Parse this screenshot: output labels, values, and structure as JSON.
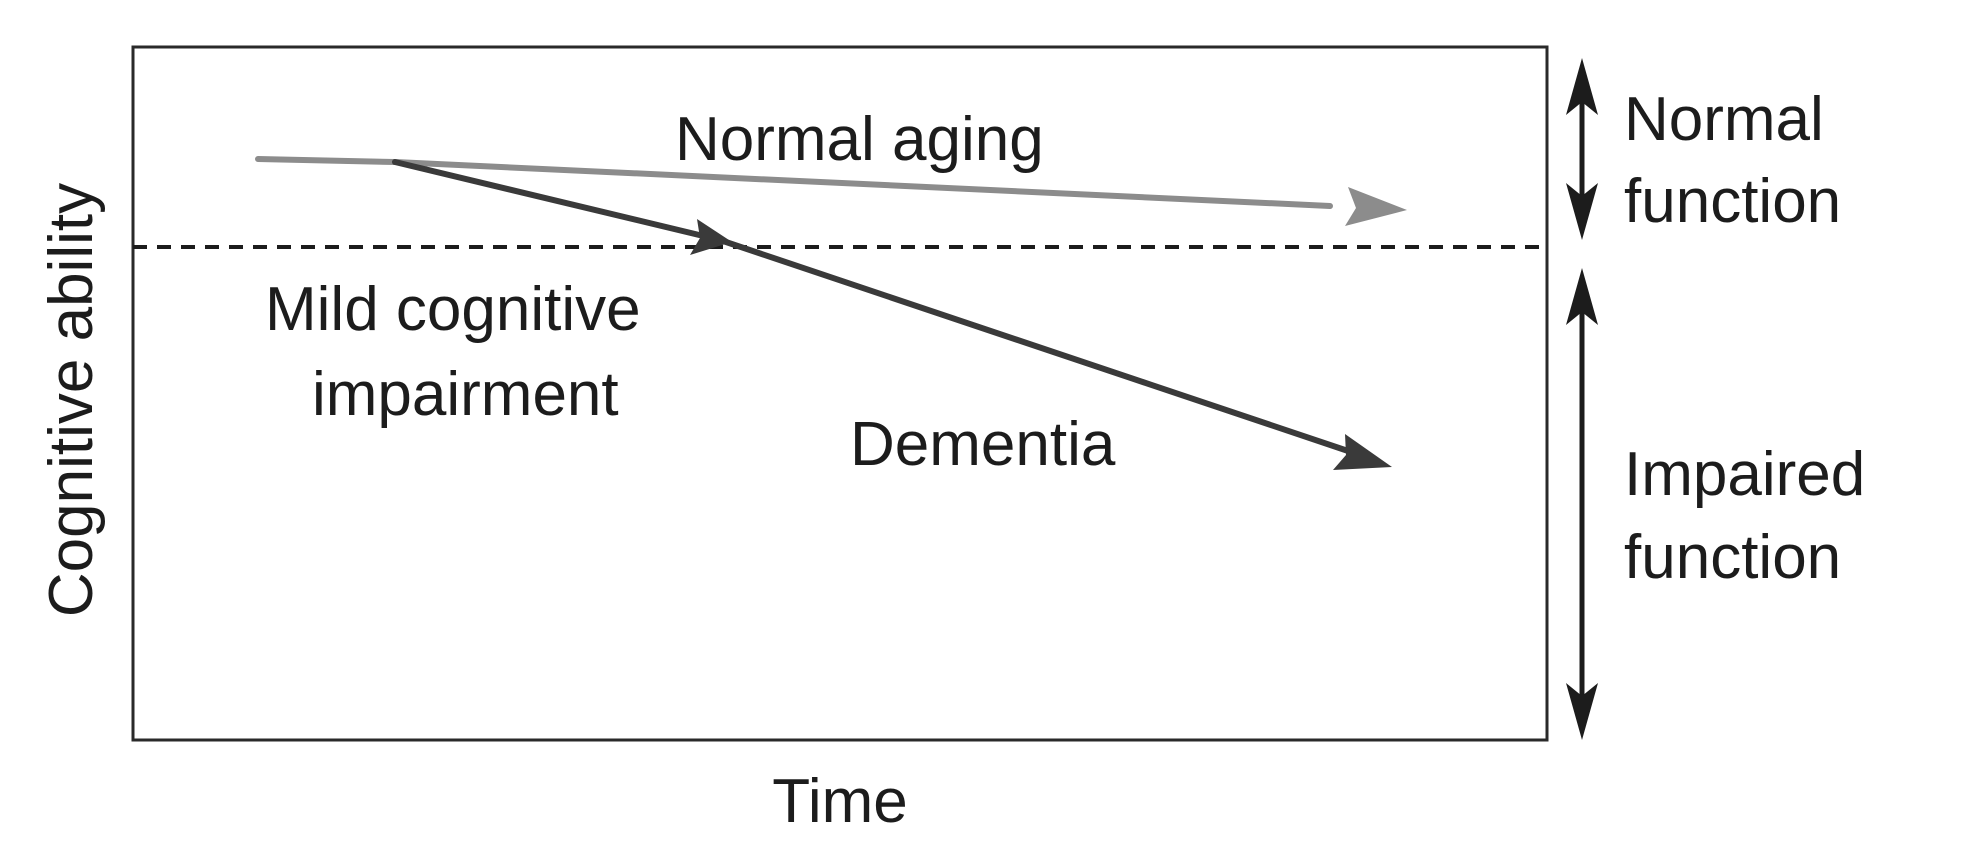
{
  "axes": {
    "x_label": "Time",
    "y_label": "Cognitive ability"
  },
  "trajectories": {
    "normal_aging": "Normal aging",
    "mci_line1": "Mild cognitive",
    "mci_line2": "impairment",
    "dementia": "Dementia"
  },
  "zones": {
    "normal_line1": "Normal",
    "normal_line2": "function",
    "impaired_line1": "Impaired",
    "impaired_line2": "function"
  },
  "colors": {
    "normal_aging_arrow": "#8c8c8c",
    "decline_arrow": "#3a3a3a",
    "frame": "#2a2a2a",
    "text": "#1c1c1c"
  }
}
